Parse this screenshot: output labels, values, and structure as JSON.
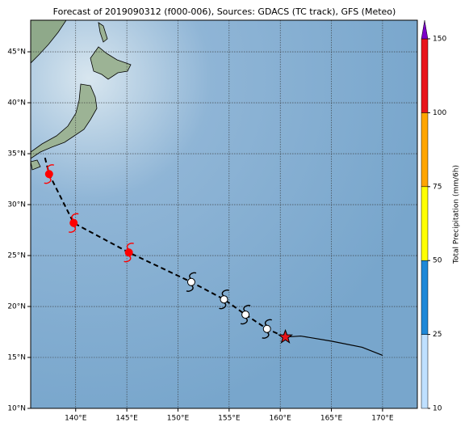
{
  "chart_data": {
    "type": "map",
    "title": "Forecast of 2019090312 (f000-006), Sources: GDACS (TC track), GFS (Meteo)",
    "xlim": [
      135.6,
      173.4
    ],
    "ylim": [
      10,
      48.1
    ],
    "xticks": [
      {
        "value": 140,
        "label": "140°E"
      },
      {
        "value": 145,
        "label": "145°E"
      },
      {
        "value": 150,
        "label": "150°E"
      },
      {
        "value": 155,
        "label": "155°E"
      },
      {
        "value": 160,
        "label": "160°E"
      },
      {
        "value": 165,
        "label": "165°E"
      },
      {
        "value": 170,
        "label": "170°E"
      }
    ],
    "yticks": [
      {
        "value": 10,
        "label": "10°N"
      },
      {
        "value": 15,
        "label": "15°N"
      },
      {
        "value": 20,
        "label": "20°N"
      },
      {
        "value": 25,
        "label": "25°N"
      },
      {
        "value": 30,
        "label": "30°N"
      },
      {
        "value": 35,
        "label": "35°N"
      },
      {
        "value": 40,
        "label": "40°N"
      },
      {
        "value": 45,
        "label": "45°N"
      }
    ],
    "grid": true,
    "track": {
      "x": [
        137.0,
        137.4,
        139.8,
        145.2,
        151.3,
        154.5,
        156.6,
        158.7,
        160.5
      ],
      "y": [
        34.6,
        33.0,
        28.2,
        25.3,
        22.4,
        20.7,
        19.2,
        17.8,
        17.0
      ]
    },
    "observed": {
      "color": "#ff0000",
      "x": [
        137.4,
        139.8,
        145.2
      ],
      "y": [
        33.0,
        28.2,
        25.3
      ]
    },
    "forecast": {
      "color": "#ffffff",
      "x": [
        151.3,
        154.5,
        156.6,
        158.7
      ],
      "y": [
        22.4,
        20.7,
        19.2,
        17.8
      ]
    },
    "current": {
      "color": "#e8141b",
      "x": 160.5,
      "y": 17.0
    },
    "past_track": {
      "x": [
        160.5,
        162.0,
        165.0,
        168.0,
        170.0
      ],
      "y": [
        17.0,
        17.1,
        16.6,
        16.0,
        15.2
      ]
    },
    "colorbar": {
      "label": "Total Precipitation (mm/6h)",
      "ticks": [
        10,
        25,
        50,
        75,
        100,
        150
      ],
      "colors": [
        "#bfe0ff",
        "#1e88d8",
        "#ffff00",
        "#ffa500",
        "#e8141b"
      ],
      "extend_color": "#7b00c8"
    }
  }
}
